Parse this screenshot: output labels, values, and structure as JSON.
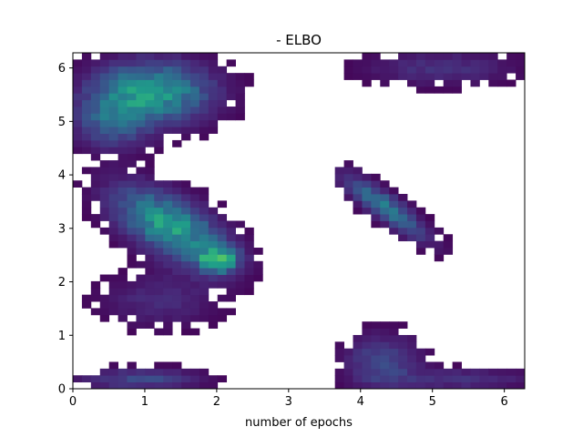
{
  "chart_data": {
    "type": "heatmap",
    "title": "- ELBO",
    "xlabel": "number of epochs",
    "ylabel": "",
    "xlim": [
      0,
      6.2832
    ],
    "ylim": [
      0,
      6.2832
    ],
    "xticks": [
      0,
      1,
      2,
      3,
      4,
      5,
      6
    ],
    "yticks": [
      0,
      1,
      2,
      3,
      4,
      5,
      6
    ],
    "grid": false,
    "colormap": "viridis",
    "bins": 50,
    "regions": [
      {
        "name": "upper-left band",
        "cx": 1.1,
        "cy": 5.55,
        "sx": 0.55,
        "sy": 0.38,
        "peak": 0.55
      },
      {
        "name": "upper-left fringe",
        "cx": 0.55,
        "cy": 5.0,
        "sx": 0.35,
        "sy": 0.35,
        "peak": 0.28
      },
      {
        "name": "middle-left ridge",
        "cx": 1.35,
        "cy": 3.05,
        "sx": 0.42,
        "sy": 0.45,
        "peak": 0.55
      },
      {
        "name": "bright peak",
        "cx": 2.03,
        "cy": 2.42,
        "sx": 0.18,
        "sy": 0.16,
        "peak": 0.62
      },
      {
        "name": "lower-left sparse",
        "cx": 1.2,
        "cy": 1.65,
        "sx": 0.55,
        "sy": 0.35,
        "peak": 0.12
      },
      {
        "name": "bottom-left strip",
        "cx": 0.95,
        "cy": 0.18,
        "sx": 0.55,
        "sy": 0.13,
        "peak": 0.22
      },
      {
        "name": "right diagonal band",
        "cx": 4.35,
        "cy": 3.4,
        "sx": 0.3,
        "sy": 0.3,
        "peak": 0.4
      },
      {
        "name": "right top sparse",
        "cx": 5.1,
        "cy": 6.0,
        "sx": 0.7,
        "sy": 0.22,
        "peak": 0.14
      },
      {
        "name": "right bottom cluster",
        "cx": 4.3,
        "cy": 0.5,
        "sx": 0.35,
        "sy": 0.35,
        "peak": 0.22
      },
      {
        "name": "right bottom strip",
        "cx": 5.4,
        "cy": 0.18,
        "sx": 0.65,
        "sy": 0.13,
        "peak": 0.15
      }
    ]
  }
}
